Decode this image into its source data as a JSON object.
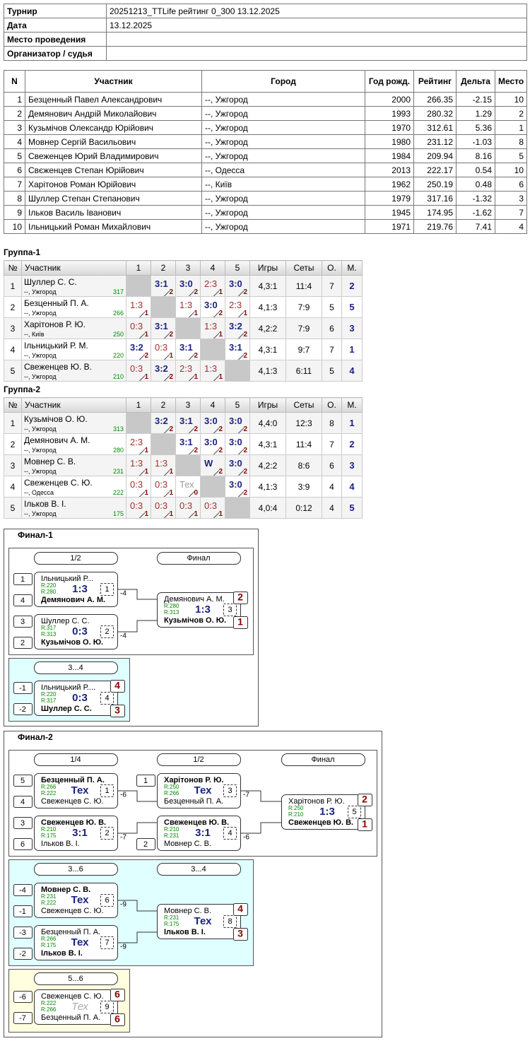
{
  "info": {
    "rows": [
      {
        "label": "Турнир",
        "value": "20251213_TTLife рейтинг 0_300 13.12.2025"
      },
      {
        "label": "Дата",
        "value": "13.12.2025"
      },
      {
        "label": "Место проведения"
      },
      {
        "label": "Организатор / судья"
      }
    ]
  },
  "participants": {
    "header": [
      "N",
      "Участник",
      "Город",
      "Год рожд.",
      "Рейтинг",
      "Дельта",
      "Место"
    ],
    "rows": [
      [
        "1",
        "Безценный Павел Александрович",
        "--, Ужгород",
        "2000",
        "266.35",
        "-2.15",
        "10"
      ],
      [
        "2",
        "Демянович Андрій Миколайович",
        "--, Ужгород",
        "1993",
        "280.32",
        "1.29",
        "2"
      ],
      [
        "3",
        "Кузьмічов Олександр Юрійович",
        "--, Ужгород",
        "1970",
        "312.61",
        "5.36",
        "1"
      ],
      [
        "4",
        "Мовнер Сергій Васильович",
        "--, Ужгород",
        "1980",
        "231.12",
        "-1.03",
        "8"
      ],
      [
        "5",
        "Свеженцев Юрий Владимирович",
        "--, Ужгород",
        "1984",
        "209.94",
        "8.16",
        "5"
      ],
      [
        "6",
        "Свєженцев Степан Юрійович",
        "--, Одесса",
        "2013",
        "222.17",
        "0.54",
        "10"
      ],
      [
        "7",
        "Харітонов Роман Юрійович",
        "--, Київ",
        "1962",
        "250.19",
        "0.48",
        "6"
      ],
      [
        "8",
        "Шуллер Степан Степанович",
        "--, Ужгород",
        "1979",
        "317.16",
        "-1.32",
        "3"
      ],
      [
        "9",
        "Ільков Василь Іванович",
        "--, Ужгород",
        "1945",
        "174.95",
        "-1.62",
        "7"
      ],
      [
        "10",
        "Ільницький Роман Михайлович",
        "--, Ужгород",
        "1971",
        "219.76",
        "7.41",
        "4"
      ]
    ]
  },
  "groups": [
    {
      "title": "Группа-1",
      "header": [
        "№",
        "Участник",
        "1",
        "2",
        "3",
        "4",
        "5",
        "Игры",
        "Сеты",
        "О.",
        "М."
      ],
      "rows": [
        {
          "n": "1",
          "name": "Шуллер С. С.",
          "city": "--, Ужгород",
          "rating": "317",
          "cells": [
            null,
            {
              "score": "3:1",
              "pts": "2"
            },
            {
              "score": "3:0",
              "pts": "2"
            },
            {
              "score": "2:3",
              "pts": "1"
            },
            {
              "score": "3:0",
              "pts": "2"
            }
          ],
          "games": "4,3:1",
          "sets": "11:4",
          "points": "7",
          "place": "2"
        },
        {
          "n": "2",
          "name": "Безценный П. А.",
          "city": "--, Ужгород",
          "rating": "266",
          "cells": [
            {
              "score": "1:3",
              "pts": "1"
            },
            null,
            {
              "score": "1:3",
              "pts": "1"
            },
            {
              "score": "3:0",
              "pts": "2"
            },
            {
              "score": "2:3",
              "pts": "1"
            }
          ],
          "games": "4,1:3",
          "sets": "7:9",
          "points": "5",
          "place": "5"
        },
        {
          "n": "3",
          "name": "Харітонов Р. Ю.",
          "city": "--, Київ",
          "rating": "250",
          "cells": [
            {
              "score": "0:3",
              "pts": "1"
            },
            {
              "score": "3:1",
              "pts": "2"
            },
            null,
            {
              "score": "1:3",
              "pts": "1"
            },
            {
              "score": "3:2",
              "pts": "2"
            }
          ],
          "games": "4,2:2",
          "sets": "7:9",
          "points": "6",
          "place": "3"
        },
        {
          "n": "4",
          "name": "Ільницький Р. М.",
          "city": "--, Ужгород",
          "rating": "220",
          "cells": [
            {
              "score": "3:2",
              "pts": "2"
            },
            {
              "score": "0:3",
              "pts": "1"
            },
            {
              "score": "3:1",
              "pts": "2"
            },
            null,
            {
              "score": "3:1",
              "pts": "2"
            }
          ],
          "games": "4,3:1",
          "sets": "9:7",
          "points": "7",
          "place": "1"
        },
        {
          "n": "5",
          "name": "Свеженцев Ю. В.",
          "city": "--, Ужгород",
          "rating": "210",
          "cells": [
            {
              "score": "0:3",
              "pts": "1"
            },
            {
              "score": "3:2",
              "pts": "2"
            },
            {
              "score": "2:3",
              "pts": "1"
            },
            {
              "score": "1:3",
              "pts": "1"
            },
            null
          ],
          "games": "4,1:3",
          "sets": "6:11",
          "points": "5",
          "place": "4"
        }
      ]
    },
    {
      "title": "Группа-2",
      "header": [
        "№",
        "Участник",
        "1",
        "2",
        "3",
        "4",
        "5",
        "Игры",
        "Сеты",
        "О.",
        "М."
      ],
      "rows": [
        {
          "n": "1",
          "name": "Кузьмічов О. Ю.",
          "city": "--, Ужгород",
          "rating": "313",
          "cells": [
            null,
            {
              "score": "3:2",
              "pts": "2"
            },
            {
              "score": "3:1",
              "pts": "2"
            },
            {
              "score": "3:0",
              "pts": "2"
            },
            {
              "score": "3:0",
              "pts": "2"
            }
          ],
          "games": "4,4:0",
          "sets": "12:3",
          "points": "8",
          "place": "1"
        },
        {
          "n": "2",
          "name": "Демянович А. М.",
          "city": "--, Ужгород",
          "rating": "280",
          "cells": [
            {
              "score": "2:3",
              "pts": "1"
            },
            null,
            {
              "score": "3:1",
              "pts": "2"
            },
            {
              "score": "3:0",
              "pts": "2"
            },
            {
              "score": "3:0",
              "pts": "2"
            }
          ],
          "games": "4,3:1",
          "sets": "11:4",
          "points": "7",
          "place": "2"
        },
        {
          "n": "3",
          "name": "Мовнер С. В.",
          "city": "--, Ужгород",
          "rating": "231",
          "cells": [
            {
              "score": "1:3",
              "pts": "1"
            },
            {
              "score": "1:3",
              "pts": "1"
            },
            null,
            {
              "score": "W",
              "pts": "2"
            },
            {
              "score": "3:0",
              "pts": "2"
            }
          ],
          "games": "4,2:2",
          "sets": "8:6",
          "points": "6",
          "place": "3"
        },
        {
          "n": "4",
          "name": "Свеженцев С. Ю.",
          "city": "--, Одесса",
          "rating": "222",
          "cells": [
            {
              "score": "0:3",
              "pts": "1"
            },
            {
              "score": "0:3",
              "pts": "1"
            },
            {
              "score": "Тех",
              "pts": "0"
            },
            null,
            {
              "score": "3:0",
              "pts": "2"
            }
          ],
          "games": "4,1:3",
          "sets": "3:9",
          "points": "4",
          "place": "4"
        },
        {
          "n": "5",
          "name": "Ільков В. І.",
          "city": "--, Ужгород",
          "rating": "175",
          "cells": [
            {
              "score": "0:3",
              "pts": "1"
            },
            {
              "score": "0:3",
              "pts": "1"
            },
            {
              "score": "0:3",
              "pts": "1"
            },
            {
              "score": "0:3",
              "pts": "1"
            },
            null
          ],
          "games": "4,0:4",
          "sets": "0:12",
          "points": "4",
          "place": "5"
        }
      ]
    }
  ],
  "finals": [
    {
      "title": "Финал-1",
      "panels": [
        {
          "rounds": [
            "1/2",
            "Финал"
          ],
          "matches": [
            {
              "seed1": "1",
              "p1": "Ільницький Р...",
              "r1": "R:220",
              "seed2": "4",
              "p2": "Демянович А. М.",
              "r2": "R:280",
              "score": "1:3",
              "num": "1",
              "winner": 2,
              "loser_to": "-4"
            },
            {
              "seed1": "3",
              "p1": "Шуллер С. С.",
              "r1": "R:317",
              "seed2": "2",
              "p2": "Кузьмічов О. Ю.",
              "r2": "R:313",
              "score": "0:3",
              "num": "2",
              "winner": 2,
              "loser_to": "-4"
            },
            {
              "p1": "Демянович А. М.",
              "r1": "R:280",
              "p2": "Кузьмічов О. Ю.",
              "r2": "R:313",
              "score": "1:3",
              "num": "3",
              "winner": 2,
              "place1": "2",
              "place2": "1"
            }
          ]
        },
        {
          "rounds": [
            "3...4"
          ],
          "matches": [
            {
              "seed1": "-1",
              "p1": "Ільницький Р....",
              "r1": "R:220",
              "seed2": "-2",
              "p2": "Шуллер С. С.",
              "r2": "R:317",
              "score": "0:3",
              "num": "4",
              "winner": 2,
              "place1": "4",
              "place2": "3"
            }
          ]
        }
      ]
    },
    {
      "title": "Финал-2",
      "panels": [
        {
          "rounds": [
            "1/4",
            "1/2",
            "Финал"
          ],
          "matches": [
            {
              "seed1": "5",
              "p1": "Безценный П. А.",
              "r1": "R:266",
              "seed2": "4",
              "p2": "Свеженцев С. Ю.",
              "r2": "R:222",
              "score": "Тех",
              "num": "1",
              "winner": 1,
              "loser_to": "-6"
            },
            {
              "seed1": "3",
              "p1": "Свеженцев Ю. В.",
              "r1": "R:210",
              "seed2": "6",
              "p2": "Ільков В. І.",
              "r2": "R:175",
              "score": "3:1",
              "num": "2",
              "winner": 1,
              "loser_to": "-7"
            },
            {
              "seed1": "1",
              "p1": "Харітонов Р. Ю.",
              "r1": "R:250",
              "p2": "Безценный П. А.",
              "r2": "R:266",
              "score": "Тех",
              "num": "3",
              "winner": 1,
              "loser_to": "-7"
            },
            {
              "p1": "Свеженцев Ю. В.",
              "r1": "R:210",
              "seed2": "2",
              "p2": "Мовнер С. В.",
              "r2": "R:231",
              "score": "3:1",
              "num": "4",
              "winner": 1,
              "loser_to": "-6"
            },
            {
              "p1": "Харітонов Р. Ю.",
              "r1": "R:250",
              "p2": "Свеженцев Ю. В.",
              "r2": "R:210",
              "score": "1:3",
              "num": "5",
              "winner": 2,
              "place1": "2",
              "place2": "1"
            }
          ]
        },
        {
          "rounds": [
            "3...6",
            "3...4"
          ],
          "matches": [
            {
              "seed1": "-4",
              "p1": "Мовнер С. В.",
              "r1": "R:231",
              "seed2": "-1",
              "p2": "Свеженцев С. Ю.",
              "r2": "R:222",
              "score": "Тех",
              "num": "6",
              "winner": 1,
              "loser_to": "-9"
            },
            {
              "seed1": "-3",
              "p1": "Безценный П. А.",
              "r1": "R:266",
              "seed2": "-2",
              "p2": "Ільков В. І.",
              "r2": "R:175",
              "score": "Тех",
              "num": "7",
              "winner": 2,
              "loser_to": "-9"
            },
            {
              "p1": "Мовнер С. В.",
              "r1": "R:231",
              "p2": "Ільков В. І.",
              "r2": "R:175",
              "score": "Тех",
              "num": "8",
              "winner": 2,
              "place1": "4",
              "place2": "3"
            }
          ]
        },
        {
          "rounds": [
            "5...6"
          ],
          "matches": [
            {
              "seed1": "-6",
              "p1": "Свеженцев С. Ю.",
              "r1": "R:222",
              "seed2": "-7",
              "p2": "Безценный П. А.",
              "r2": "R:266",
              "score": "Тех",
              "num": "9",
              "place1": "6",
              "place2": "6"
            }
          ]
        }
      ]
    }
  ]
}
